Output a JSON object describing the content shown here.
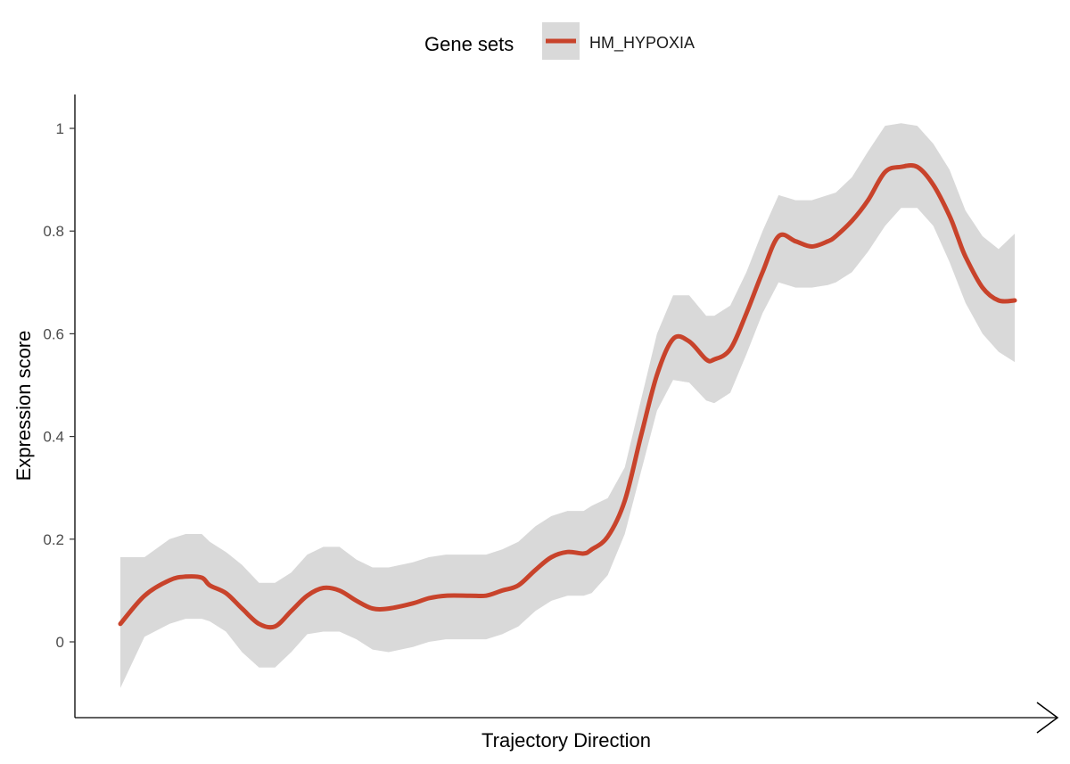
{
  "chart_data": {
    "type": "line",
    "xlabel": "Trajectory Direction",
    "ylabel": "Expression score",
    "ylim": [
      -0.145,
      1.06
    ],
    "yticks": [
      "0",
      "0.2",
      "0.4",
      "0.6",
      "0.8",
      "1"
    ],
    "ytick_values": [
      0,
      0.2,
      0.4,
      0.6,
      0.8,
      1
    ],
    "grid": false,
    "legend": {
      "title": "Gene sets",
      "position": "top"
    },
    "series": [
      {
        "name": "HM_HYPOXIA",
        "color": "#c8432b",
        "x": [
          0,
          0.027,
          0.055,
          0.073,
          0.091,
          0.1,
          0.118,
          0.136,
          0.155,
          0.173,
          0.191,
          0.209,
          0.227,
          0.245,
          0.264,
          0.282,
          0.3,
          0.327,
          0.345,
          0.364,
          0.391,
          0.409,
          0.427,
          0.445,
          0.464,
          0.482,
          0.5,
          0.518,
          0.527,
          0.545,
          0.564,
          0.582,
          0.6,
          0.618,
          0.636,
          0.655,
          0.664,
          0.682,
          0.7,
          0.718,
          0.736,
          0.755,
          0.773,
          0.791,
          0.8,
          0.818,
          0.836,
          0.855,
          0.873,
          0.891,
          0.909,
          0.927,
          0.936,
          0.945,
          0.964,
          0.982,
          1.0
        ],
        "y": [
          0.035,
          0.09,
          0.12,
          0.127,
          0.125,
          0.11,
          0.095,
          0.065,
          0.035,
          0.03,
          0.06,
          0.09,
          0.105,
          0.1,
          0.08,
          0.065,
          0.065,
          0.075,
          0.085,
          0.09,
          0.09,
          0.09,
          0.1,
          0.11,
          0.14,
          0.165,
          0.175,
          0.172,
          0.18,
          0.205,
          0.275,
          0.4,
          0.52,
          0.59,
          0.585,
          0.55,
          0.55,
          0.57,
          0.64,
          0.72,
          0.79,
          0.78,
          0.77,
          0.78,
          0.79,
          0.82,
          0.86,
          0.915,
          0.925,
          0.925,
          0.89,
          0.83,
          0.79,
          0.75,
          0.69,
          0.665,
          0.665
        ],
        "lower": [
          -0.09,
          0.01,
          0.035,
          0.045,
          0.045,
          0.04,
          0.02,
          -0.02,
          -0.05,
          -0.05,
          -0.02,
          0.015,
          0.02,
          0.02,
          0.005,
          -0.015,
          -0.02,
          -0.01,
          0.0,
          0.005,
          0.005,
          0.005,
          0.015,
          0.03,
          0.06,
          0.08,
          0.09,
          0.09,
          0.095,
          0.13,
          0.21,
          0.33,
          0.45,
          0.51,
          0.505,
          0.47,
          0.465,
          0.485,
          0.56,
          0.64,
          0.7,
          0.69,
          0.69,
          0.695,
          0.7,
          0.72,
          0.76,
          0.81,
          0.845,
          0.845,
          0.81,
          0.74,
          0.7,
          0.66,
          0.6,
          0.565,
          0.545
        ],
        "upper": [
          0.165,
          0.165,
          0.2,
          0.21,
          0.21,
          0.195,
          0.175,
          0.15,
          0.115,
          0.115,
          0.135,
          0.17,
          0.185,
          0.185,
          0.16,
          0.145,
          0.145,
          0.155,
          0.165,
          0.17,
          0.17,
          0.17,
          0.18,
          0.195,
          0.225,
          0.245,
          0.255,
          0.255,
          0.265,
          0.28,
          0.34,
          0.47,
          0.6,
          0.675,
          0.675,
          0.635,
          0.635,
          0.655,
          0.72,
          0.8,
          0.87,
          0.86,
          0.86,
          0.87,
          0.875,
          0.905,
          0.955,
          1.005,
          1.01,
          1.005,
          0.97,
          0.92,
          0.88,
          0.84,
          0.79,
          0.765,
          0.795
        ]
      }
    ]
  }
}
